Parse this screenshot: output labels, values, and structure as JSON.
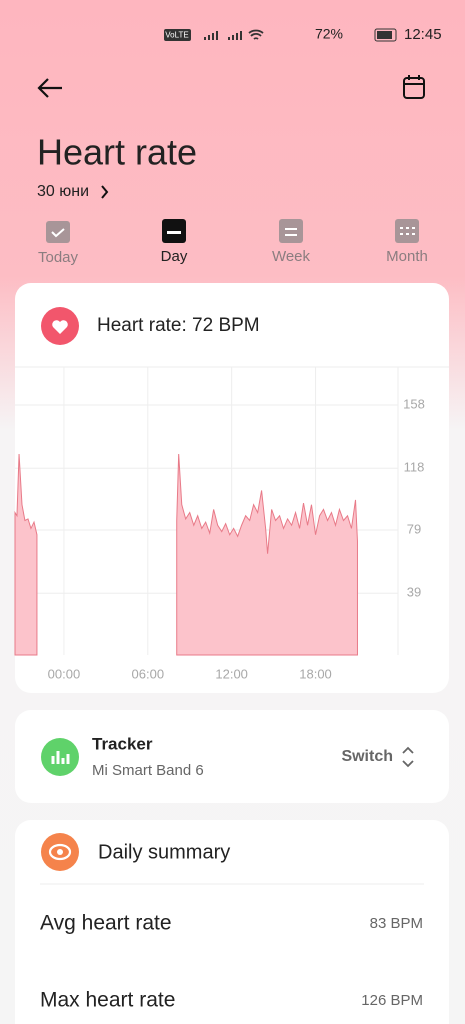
{
  "status": {
    "network": "VoLTE",
    "battery": "72%",
    "time": "12:45"
  },
  "header": {
    "title": "Heart rate",
    "date": "30 юни"
  },
  "tabs": [
    "Today",
    "Day",
    "Week",
    "Month"
  ],
  "heart_card": {
    "label": "Heart rate: 72 BPM"
  },
  "chart_data": {
    "type": "area",
    "color": "#e87a88",
    "x": [
      -3.5,
      -3.36,
      -3.21,
      -3.0,
      -2.79,
      -2.57,
      -2.36,
      -2.14,
      -1.93,
      -1.0,
      8.07,
      8.21,
      8.43,
      8.71,
      9.0,
      9.29,
      9.57,
      9.86,
      10.14,
      10.43,
      10.71,
      11.0,
      11.29,
      11.57,
      11.86,
      12.14,
      12.43,
      12.71,
      13.0,
      13.29,
      13.57,
      13.86,
      14.14,
      14.43,
      14.57,
      14.86,
      15.14,
      15.43,
      15.71,
      16.0,
      16.29,
      16.57,
      16.86,
      17.14,
      17.43,
      17.71,
      18.0,
      18.29,
      18.57,
      18.86,
      19.14,
      19.43,
      19.71,
      20.0,
      20.29,
      20.57,
      20.86,
      21.0
    ],
    "values": [
      90,
      88,
      127,
      95,
      85,
      86,
      80,
      84,
      76,
      null,
      85,
      127,
      95,
      86,
      90,
      82,
      88,
      80,
      84,
      77,
      92,
      82,
      78,
      83,
      76,
      80,
      75,
      82,
      88,
      85,
      95,
      90,
      104,
      80,
      64,
      92,
      85,
      88,
      80,
      86,
      82,
      90,
      80,
      96,
      82,
      95,
      76,
      88,
      92,
      85,
      90,
      82,
      92,
      85,
      88,
      80,
      98,
      72
    ],
    "xlim": [
      -3.5,
      23.9
    ],
    "xticks": [
      {
        "value": 0,
        "label": "00:00"
      },
      {
        "value": 6,
        "label": "06:00"
      },
      {
        "value": 12,
        "label": "12:00"
      },
      {
        "value": 18,
        "label": "18:00"
      }
    ],
    "ylim": [
      0,
      182
    ],
    "yticks": [
      39,
      79,
      118,
      158
    ],
    "grid": true
  },
  "tracker": {
    "title": "Tracker",
    "device": "Mi Smart Band 6",
    "action": "Switch"
  },
  "summary": {
    "title": "Daily summary",
    "rows": [
      {
        "label": "Avg heart rate",
        "value": "83 BPM"
      },
      {
        "label": "Max heart rate",
        "value": "126 BPM"
      }
    ]
  }
}
